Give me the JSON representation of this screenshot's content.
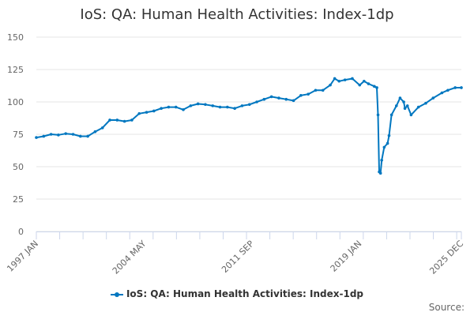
{
  "chart_data": {
    "type": "line",
    "title": "IoS: QA: Human Health Activities: Index-1dp",
    "xlabel": "",
    "ylabel": "",
    "ylim": [
      0,
      150
    ],
    "yticks": [
      0,
      25,
      50,
      75,
      100,
      125,
      150
    ],
    "xlim": [
      1997.0,
      2025.92
    ],
    "xtick_labels": [
      {
        "label": "1997 JAN",
        "x": 1997.0
      },
      {
        "label": "2004 MAY",
        "x": 2004.33
      },
      {
        "label": "2011 SEP",
        "x": 2011.67
      },
      {
        "label": "2019 JAN",
        "x": 2019.0
      },
      {
        "label": "2025 DEC",
        "x": 2025.92
      }
    ],
    "grid": true,
    "legend_position": "bottom",
    "series": [
      {
        "name": "IoS: QA: Human Health Activities: Index-1dp",
        "color": "#0077c0",
        "x": [
          1997.0,
          1997.5,
          1998.0,
          1998.5,
          1999.0,
          1999.5,
          2000.0,
          2000.5,
          2001.0,
          2001.5,
          2002.0,
          2002.5,
          2003.0,
          2003.5,
          2004.0,
          2004.5,
          2005.0,
          2005.5,
          2006.0,
          2006.5,
          2007.0,
          2007.5,
          2008.0,
          2008.5,
          2009.0,
          2009.5,
          2010.0,
          2010.5,
          2011.0,
          2011.5,
          2012.0,
          2012.5,
          2013.0,
          2013.5,
          2014.0,
          2014.5,
          2015.0,
          2015.5,
          2016.0,
          2016.5,
          2017.0,
          2017.3,
          2017.6,
          2018.0,
          2018.5,
          2019.0,
          2019.3,
          2019.6,
          2020.0,
          2020.17,
          2020.25,
          2020.33,
          2020.42,
          2020.5,
          2020.67,
          2020.9,
          2021.0,
          2021.17,
          2021.5,
          2021.75,
          2022.0,
          2022.08,
          2022.25,
          2022.5,
          2023.0,
          2023.5,
          2024.0,
          2024.6,
          2025.0,
          2025.5,
          2025.92
        ],
        "values": [
          72.5,
          73.5,
          75,
          74.5,
          75.5,
          75,
          73.5,
          73.5,
          77,
          80,
          86,
          86,
          85,
          86,
          91,
          92,
          93,
          95,
          96,
          96,
          94,
          97,
          98.5,
          98,
          97,
          96,
          96,
          95,
          97,
          98,
          100,
          102,
          104,
          103,
          102,
          101,
          105,
          106,
          109,
          109,
          113,
          118,
          116,
          117,
          118,
          113,
          116,
          114,
          112,
          111,
          90,
          46,
          45,
          55,
          65,
          68,
          74,
          90,
          97,
          103,
          100,
          95,
          97,
          90,
          96,
          99,
          103,
          107,
          109,
          111,
          111
        ]
      }
    ]
  },
  "legend_label": "IoS: QA: Human Health Activities: Index-1dp",
  "source_label": "Source:"
}
